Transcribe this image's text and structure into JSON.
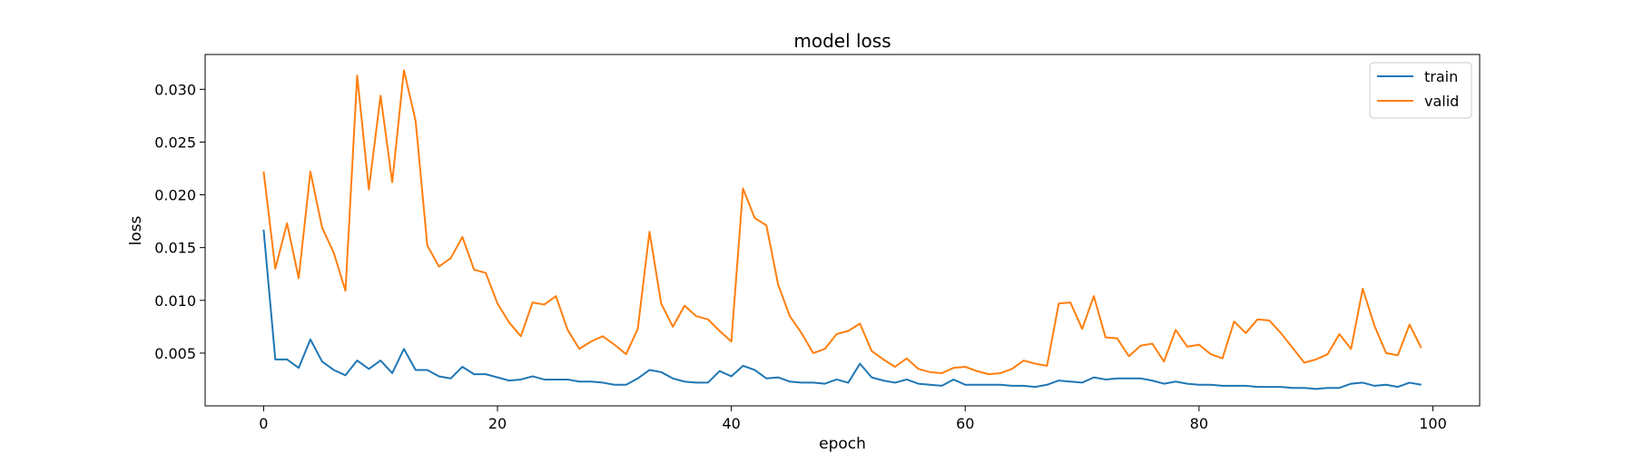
{
  "chart_data": {
    "type": "line",
    "title": "model loss",
    "xlabel": "epoch",
    "ylabel": "loss",
    "xlim": [
      -5,
      104
    ],
    "ylim": [
      0.0,
      0.0333
    ],
    "xticks": [
      0,
      20,
      40,
      60,
      80,
      100
    ],
    "xtick_labels": [
      "0",
      "20",
      "40",
      "60",
      "80",
      "100"
    ],
    "yticks": [
      0.005,
      0.01,
      0.015,
      0.02,
      0.025,
      0.03
    ],
    "ytick_labels": [
      "0.005",
      "0.010",
      "0.015",
      "0.020",
      "0.025",
      "0.030"
    ],
    "grid": false,
    "legend_position": "upper right",
    "x": [
      0,
      1,
      2,
      3,
      4,
      5,
      6,
      7,
      8,
      9,
      10,
      11,
      12,
      13,
      14,
      15,
      16,
      17,
      18,
      19,
      20,
      21,
      22,
      23,
      24,
      25,
      26,
      27,
      28,
      29,
      30,
      31,
      32,
      33,
      34,
      35,
      36,
      37,
      38,
      39,
      40,
      41,
      42,
      43,
      44,
      45,
      46,
      47,
      48,
      49,
      50,
      51,
      52,
      53,
      54,
      55,
      56,
      57,
      58,
      59,
      60,
      61,
      62,
      63,
      64,
      65,
      66,
      67,
      68,
      69,
      70,
      71,
      72,
      73,
      74,
      75,
      76,
      77,
      78,
      79,
      80,
      81,
      82,
      83,
      84,
      85,
      86,
      87,
      88,
      89,
      90,
      91,
      92,
      93,
      94,
      95,
      96,
      97,
      98,
      99
    ],
    "series": [
      {
        "name": "train",
        "color": "#1f77b4",
        "values": [
          0.0167,
          0.0044,
          0.0044,
          0.0036,
          0.0063,
          0.0042,
          0.0034,
          0.0029,
          0.0043,
          0.0035,
          0.0043,
          0.0031,
          0.0054,
          0.0034,
          0.0034,
          0.0028,
          0.0026,
          0.0037,
          0.003,
          0.003,
          0.0027,
          0.0024,
          0.0025,
          0.0028,
          0.0025,
          0.0025,
          0.0025,
          0.0023,
          0.0023,
          0.0022,
          0.002,
          0.002,
          0.0026,
          0.0034,
          0.0032,
          0.0026,
          0.0023,
          0.0022,
          0.0022,
          0.0033,
          0.0028,
          0.0038,
          0.0034,
          0.0026,
          0.0027,
          0.0023,
          0.0022,
          0.0022,
          0.0021,
          0.0025,
          0.0022,
          0.004,
          0.0027,
          0.0024,
          0.0022,
          0.0025,
          0.0021,
          0.002,
          0.0019,
          0.0025,
          0.002,
          0.002,
          0.002,
          0.002,
          0.0019,
          0.0019,
          0.0018,
          0.002,
          0.0024,
          0.0023,
          0.0022,
          0.0027,
          0.0025,
          0.0026,
          0.0026,
          0.0026,
          0.0024,
          0.0021,
          0.0023,
          0.0021,
          0.002,
          0.002,
          0.0019,
          0.0019,
          0.0019,
          0.0018,
          0.0018,
          0.0018,
          0.0017,
          0.0017,
          0.0016,
          0.0017,
          0.0017,
          0.0021,
          0.0022,
          0.0019,
          0.002,
          0.0018,
          0.0022,
          0.002
        ]
      },
      {
        "name": "valid",
        "color": "#ff7f0e",
        "values": [
          0.0222,
          0.013,
          0.0173,
          0.0121,
          0.0222,
          0.0169,
          0.0145,
          0.0109,
          0.0313,
          0.0205,
          0.0294,
          0.0212,
          0.0318,
          0.027,
          0.0152,
          0.0132,
          0.014,
          0.016,
          0.0129,
          0.0126,
          0.0097,
          0.0079,
          0.0066,
          0.0098,
          0.0096,
          0.0104,
          0.0072,
          0.0054,
          0.0061,
          0.0066,
          0.0058,
          0.0049,
          0.0073,
          0.0165,
          0.0097,
          0.0075,
          0.0095,
          0.0085,
          0.0082,
          0.0071,
          0.0061,
          0.0206,
          0.0178,
          0.0171,
          0.0115,
          0.0085,
          0.0069,
          0.005,
          0.0054,
          0.0068,
          0.0071,
          0.0078,
          0.0052,
          0.0044,
          0.0037,
          0.0045,
          0.0035,
          0.0032,
          0.0031,
          0.0036,
          0.0037,
          0.0033,
          0.003,
          0.0031,
          0.0035,
          0.0043,
          0.004,
          0.0038,
          0.0097,
          0.0098,
          0.0073,
          0.0104,
          0.0065,
          0.0064,
          0.0047,
          0.0057,
          0.0059,
          0.0042,
          0.0072,
          0.0056,
          0.0058,
          0.0049,
          0.0045,
          0.008,
          0.0069,
          0.0082,
          0.0081,
          0.0069,
          0.0055,
          0.0041,
          0.0044,
          0.0049,
          0.0068,
          0.0054,
          0.0111,
          0.0076,
          0.005,
          0.0048,
          0.0077,
          0.0055
        ]
      }
    ]
  }
}
